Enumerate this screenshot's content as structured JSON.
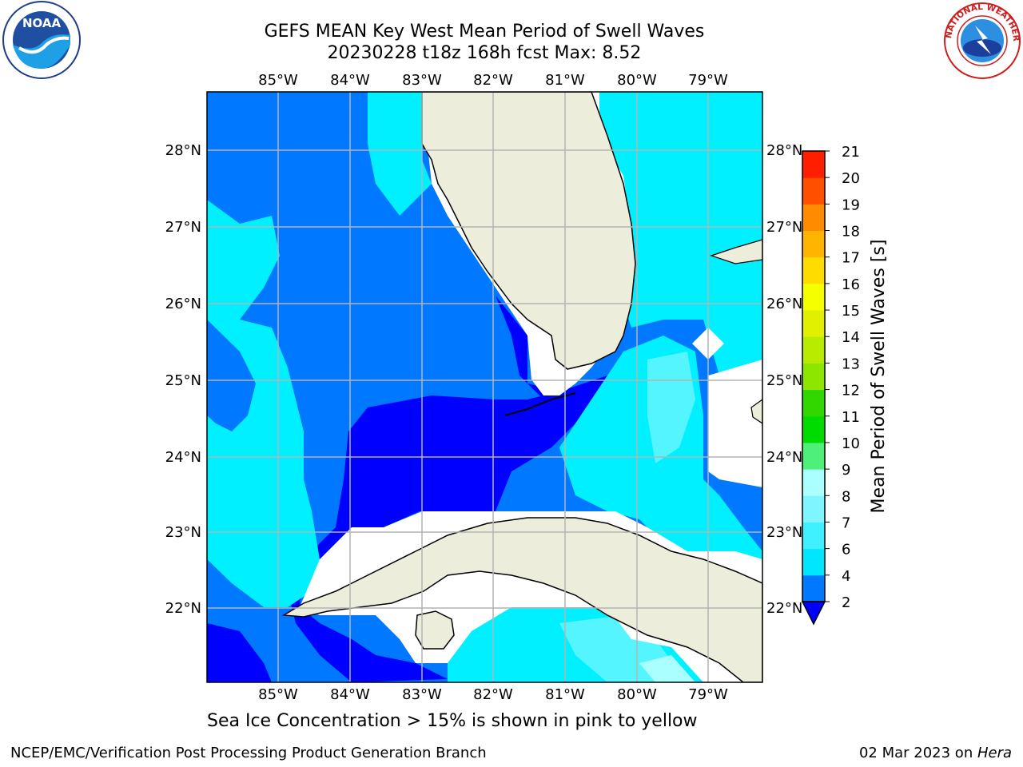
{
  "title_line1": "GEFS MEAN Key West Mean Period of Swell Waves",
  "title_line2": "20230228 t18z 168h fcst   Max: 8.52",
  "lon_labels": [
    "85°W",
    "84°W",
    "83°W",
    "82°W",
    "81°W",
    "80°W",
    "79°W"
  ],
  "lat_labels": [
    "28°N",
    "27°N",
    "26°N",
    "25°N",
    "24°N",
    "23°N",
    "22°N"
  ],
  "colorbar": {
    "label": "Mean Period of Swell Waves [s]",
    "ticks": [
      "2",
      "4",
      "6",
      "7",
      "8",
      "9",
      "10",
      "11",
      "12",
      "13",
      "14",
      "15",
      "16",
      "17",
      "18",
      "19",
      "20",
      "21"
    ],
    "colors": [
      "#0078ff",
      "#00e6ff",
      "#3ff0ff",
      "#7ff5ff",
      "#aaffff",
      "#4ff07a",
      "#00dc00",
      "#32d700",
      "#8ce600",
      "#b9eb00",
      "#e1f000",
      "#f5ff00",
      "#ffdc00",
      "#ffb400",
      "#ff8c00",
      "#ff5000",
      "#ff1e00"
    ],
    "under_color": "#0000ff"
  },
  "map_colors": {
    "land": "#ededdc",
    "deep": "#0000ff",
    "blue": "#0078ff",
    "cyan": "#00f0ff",
    "light_cyan": "#55f5ff",
    "pale": "#aaffff",
    "grid": "#b4b4b4"
  },
  "logos": {
    "noaa": "NOAA",
    "nws_ring": "NATIONAL WEATHER SERVICE"
  },
  "footnote": "Sea Ice Concentration > 15% is shown in pink to yellow",
  "credit_left": "NCEP/EMC/Verification Post Processing Product Generation Branch",
  "credit_date": "02 Mar 2023 on ",
  "credit_machine": "Hera"
}
